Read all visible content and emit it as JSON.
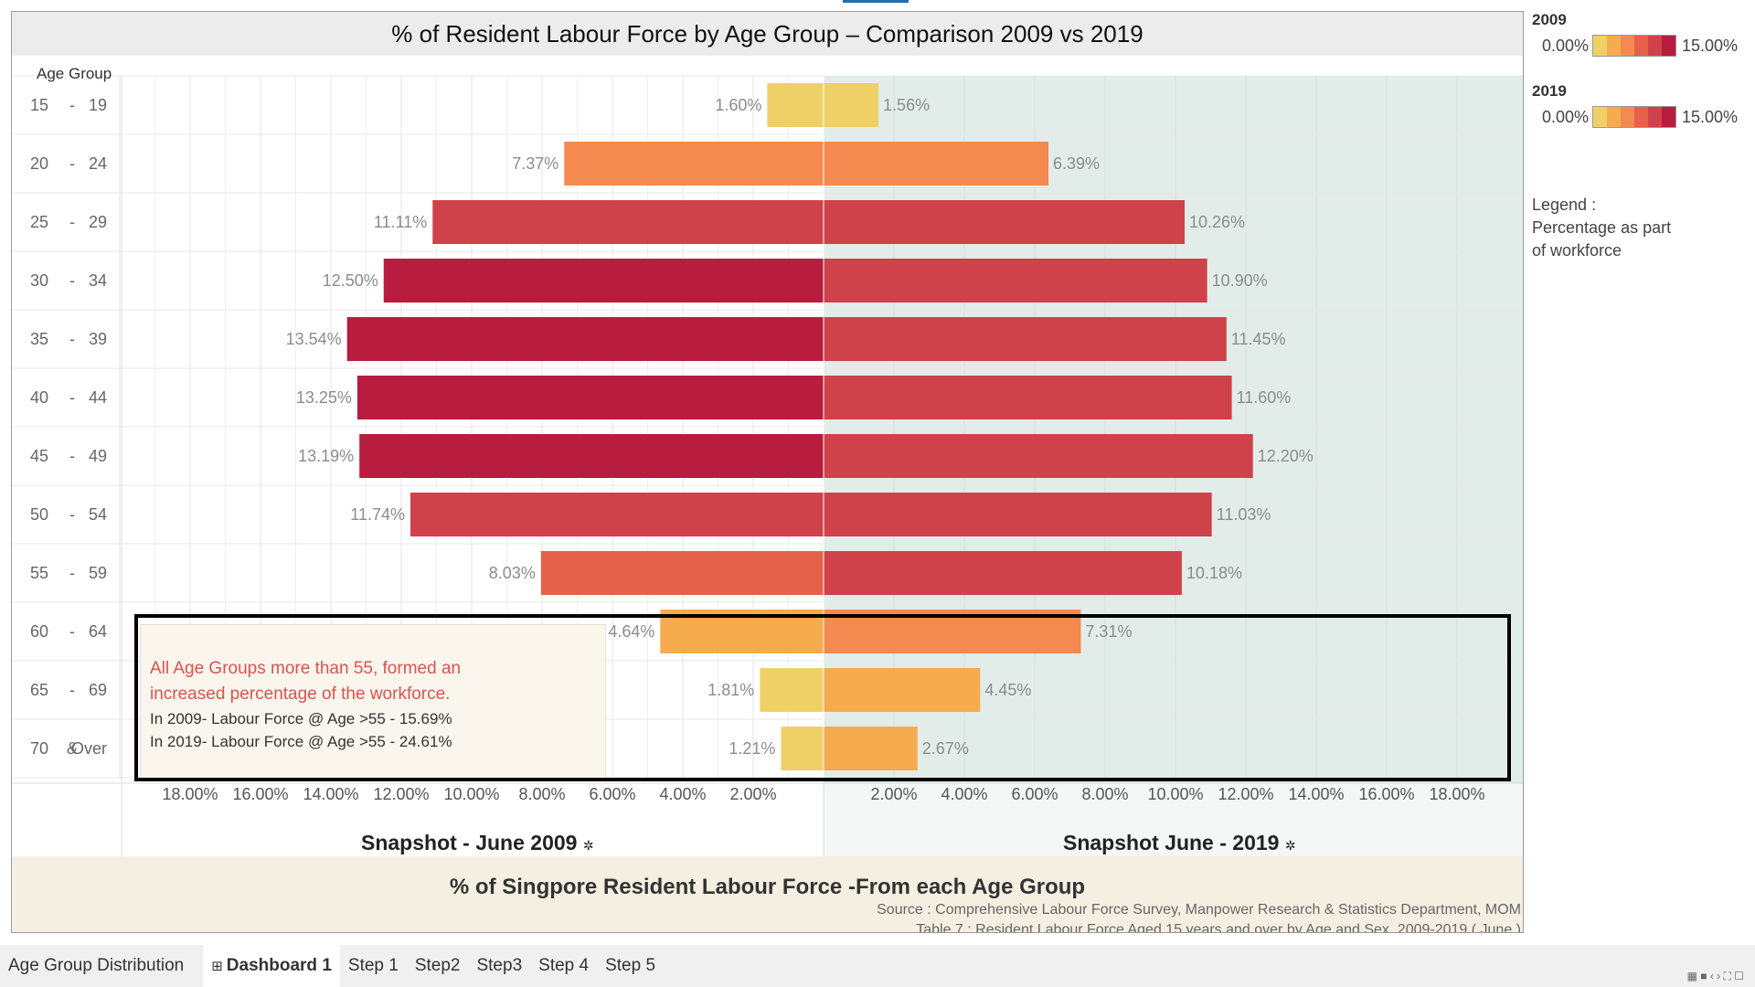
{
  "chart_data": {
    "type": "bar",
    "orientation": "horizontal-butterfly",
    "title": "% of Resident Labour Force by Age Group – Comparison 2009 vs 2019",
    "row_header": "Age Group",
    "categories": [
      {
        "from": "15",
        "sep": "-",
        "to": "19"
      },
      {
        "from": "20",
        "sep": "-",
        "to": "24"
      },
      {
        "from": "25",
        "sep": "-",
        "to": "29"
      },
      {
        "from": "30",
        "sep": "-",
        "to": "34"
      },
      {
        "from": "35",
        "sep": "-",
        "to": "39"
      },
      {
        "from": "40",
        "sep": "-",
        "to": "44"
      },
      {
        "from": "45",
        "sep": "-",
        "to": "49"
      },
      {
        "from": "50",
        "sep": "-",
        "to": "54"
      },
      {
        "from": "55",
        "sep": "-",
        "to": "59"
      },
      {
        "from": "60",
        "sep": "-",
        "to": "64"
      },
      {
        "from": "65",
        "sep": "-",
        "to": "69"
      },
      {
        "from": "70",
        "sep": "&",
        "to": "Over"
      }
    ],
    "series": [
      {
        "name": "Snapshot - June 2009",
        "side": "left",
        "values": [
          1.6,
          7.37,
          11.11,
          12.5,
          13.54,
          13.25,
          13.19,
          11.74,
          8.03,
          4.64,
          1.81,
          1.21
        ],
        "labels": [
          "1.60%",
          "7.37%",
          "11.11%",
          "12.50%",
          "13.54%",
          "13.25%",
          "13.19%",
          "11.74%",
          "8.03%",
          "4.64%",
          "1.81%",
          "1.21%"
        ]
      },
      {
        "name": "Snapshot June - 2019",
        "side": "right",
        "values": [
          1.56,
          6.39,
          10.26,
          10.9,
          11.45,
          11.6,
          12.2,
          11.03,
          10.18,
          7.31,
          4.45,
          2.67
        ],
        "labels": [
          "1.56%",
          "6.39%",
          "10.26%",
          "10.90%",
          "11.45%",
          "11.60%",
          "12.20%",
          "11.03%",
          "10.18%",
          "7.31%",
          "4.45%",
          "2.67%"
        ]
      }
    ],
    "xlim": [
      0,
      20
    ],
    "left_ticks": [
      "18.00%",
      "16.00%",
      "14.00%",
      "12.00%",
      "10.00%",
      "8.00%",
      "6.00%",
      "4.00%",
      "2.00%"
    ],
    "left_tick_values": [
      18,
      16,
      14,
      12,
      10,
      8,
      6,
      4,
      2
    ],
    "right_ticks": [
      "2.00%",
      "4.00%",
      "6.00%",
      "8.00%",
      "10.00%",
      "12.00%",
      "14.00%",
      "16.00%",
      "18.00%"
    ],
    "right_tick_values": [
      2,
      4,
      6,
      8,
      10,
      12,
      14,
      16,
      18
    ],
    "left_panel_title": "Snapshot - June 2009",
    "right_panel_title": "Snapshot June - 2019",
    "pin_icon": "pin-icon",
    "color_scale": {
      "min": 0,
      "max": 15,
      "colors": [
        "#efd067",
        "#f7ab4f",
        "#f48a4f",
        "#e66149",
        "#d0424a",
        "#b81c3e"
      ]
    }
  },
  "legend": {
    "y2009": {
      "year": "2009",
      "min": "0.00%",
      "max": "15.00%"
    },
    "y2019": {
      "year": "2019",
      "min": "0.00%",
      "max": "15.00%"
    },
    "note": [
      "Legend :",
      "Percentage as part",
      "of workforce"
    ]
  },
  "annotation": {
    "headline_1": "All Age Groups more than 55, formed an",
    "headline_2": "increased percentage of the workforce.",
    "line_1": "In 2009- Labour Force @ Age >55 - 15.69%",
    "line_2": "In 2019- Labour Force @ Age >55 - 24.61%"
  },
  "footer": {
    "title": "% of Singpore Resident Labour Force -From each Age Group",
    "source_1": "Source : Comprehensive Labour Force Survey, Manpower Research & Statistics Department, MOM",
    "source_2": "Table 7 : Resident Labour Force Aged 15 years and over by Age and Sex, 2009-2019 ( June )"
  },
  "tabs": [
    {
      "label": "Age Group Distribution",
      "active": false,
      "icon": ""
    },
    {
      "label": "Dashboard 1",
      "active": true,
      "icon": "⊞"
    },
    {
      "label": "Step 1",
      "active": false,
      "icon": ""
    },
    {
      "label": "Step2",
      "active": false,
      "icon": ""
    },
    {
      "label": "Step3",
      "active": false,
      "icon": ""
    },
    {
      "label": "Step 4",
      "active": false,
      "icon": ""
    },
    {
      "label": "Step 5",
      "active": false,
      "icon": ""
    }
  ],
  "bottom_icons": "▦ ■ ‹ › ⛶ ☐"
}
